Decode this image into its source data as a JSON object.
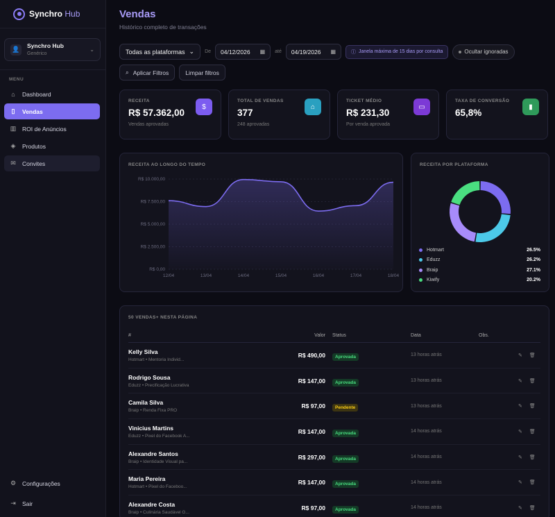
{
  "app": {
    "brand": "Synchro",
    "brand_suffix": "Hub"
  },
  "account": {
    "name": "Synchro Hub",
    "sub": "Genérico"
  },
  "sidebar": {
    "menu_label": "MENU",
    "items": [
      {
        "label": "Dashboard",
        "icon": "home-icon"
      },
      {
        "label": "Vendas",
        "icon": "clipboard-icon"
      },
      {
        "label": "ROI de Anúncios",
        "icon": "bar-chart-icon"
      },
      {
        "label": "Produtos",
        "icon": "box-icon"
      },
      {
        "label": "Convites",
        "icon": "mail-icon"
      }
    ],
    "bottom": [
      {
        "label": "Configurações",
        "icon": "gear-icon"
      },
      {
        "label": "Sair",
        "icon": "logout-icon"
      }
    ]
  },
  "page": {
    "title": "Vendas",
    "subtitle": "Histórico completo de transações"
  },
  "filters": {
    "platform": "Todas as plataformas",
    "from_label": "De",
    "from_date": "04/12/2026",
    "to_label": "até",
    "to_date": "04/19/2026",
    "info": "Janela máxima de 15 dias por consulta",
    "hide_ignored": "Ocultar ignoradas",
    "apply": "Aplicar Filtros",
    "clear": "Limpar filtros"
  },
  "cards": [
    {
      "label": "RECEITA",
      "value": "R$ 57.362,00",
      "sub": "Vendas aprovadas",
      "color": "#7c5cf0",
      "icon": "dollar-icon"
    },
    {
      "label": "TOTAL DE VENDAS",
      "value": "377",
      "sub": "248 aprovadas",
      "color": "#2aa0c0",
      "icon": "bag-icon"
    },
    {
      "label": "TICKET MÉDIO",
      "value": "R$ 231,30",
      "sub": "Por venda aprovada",
      "color": "#7c3ad6",
      "icon": "ticket-icon"
    },
    {
      "label": "TAXA DE CONVERSÃO",
      "value": "65,8%",
      "sub": "",
      "color": "#2f9a5a",
      "icon": "trend-icon"
    }
  ],
  "chart_data": [
    {
      "type": "area",
      "title": "RECEITA AO LONGO DO TEMPO",
      "categories": [
        "12/04",
        "13/04",
        "14/04",
        "15/04",
        "16/04",
        "17/04",
        "18/04"
      ],
      "values": [
        7600,
        6950,
        9950,
        9700,
        6450,
        7050,
        9650
      ],
      "ylim": [
        0,
        10000
      ],
      "yticks": [
        "R$ 0,00",
        "R$ 2.500,00",
        "R$ 5.000,00",
        "R$ 7.500,00",
        "R$ 10.000,00"
      ],
      "color": "#7c6cf0"
    },
    {
      "type": "pie",
      "title": "RECEITA POR PLATAFORMA",
      "series": [
        {
          "name": "Hotmart",
          "value": 26.5,
          "label": "26.5%",
          "color": "#7c6cf0"
        },
        {
          "name": "Eduzz",
          "value": 26.2,
          "label": "26.2%",
          "color": "#4cc9e8"
        },
        {
          "name": "Braip",
          "value": 27.1,
          "label": "27.1%",
          "color": "#a78bfa"
        },
        {
          "name": "Kiwify",
          "value": 20.2,
          "label": "20.2%",
          "color": "#4ade80"
        }
      ]
    }
  ],
  "table": {
    "title": "50 VENDAS+ NESTA PÁGINA",
    "headers": [
      "#",
      "Valor",
      "Status",
      "Data",
      "Obs."
    ],
    "rows": [
      {
        "name": "Kelly Silva",
        "sub": "Hotmart • Mentoria Individ...",
        "value": "R$ 490,00",
        "status": "Aprovada",
        "date": "13 horas atrás"
      },
      {
        "name": "Rodrigo Sousa",
        "sub": "Eduzz • Precificação Lucrativa",
        "value": "R$ 147,00",
        "status": "Aprovada",
        "date": "13 horas atrás"
      },
      {
        "name": "Camila Silva",
        "sub": "Braip • Renda Fixa PRO",
        "value": "R$ 97,00",
        "status": "Pendente",
        "date": "13 horas atrás"
      },
      {
        "name": "Vinicius Martins",
        "sub": "Eduzz • Pixel do Facebook A...",
        "value": "R$ 147,00",
        "status": "Aprovada",
        "date": "14 horas atrás"
      },
      {
        "name": "Alexandre Santos",
        "sub": "Braip • Identidade Visual pa...",
        "value": "R$ 297,00",
        "status": "Aprovada",
        "date": "14 horas atrás"
      },
      {
        "name": "Maria Pereira",
        "sub": "Hotmart • Pixel do Faceboo...",
        "value": "R$ 147,00",
        "status": "Aprovada",
        "date": "14 horas atrás"
      },
      {
        "name": "Alexandre Costa",
        "sub": "Braip • Culinária Saudável G...",
        "value": "R$ 97,00",
        "status": "Aprovada",
        "date": "14 horas atrás"
      }
    ]
  }
}
